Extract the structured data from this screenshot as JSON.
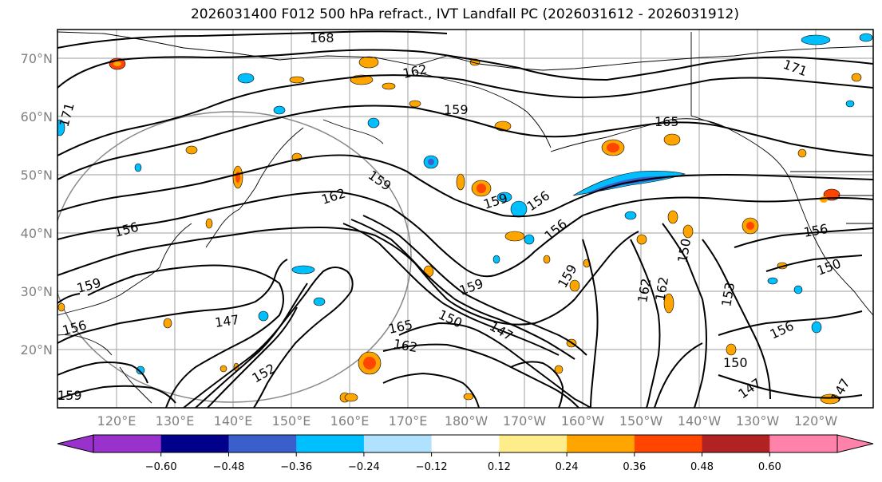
{
  "title": "2026031400 F012 500 hPa refract., IVT Landfall PC (2026031612 - 2026031912)",
  "lat_labels": [
    "70°N",
    "60°N",
    "50°N",
    "40°N",
    "30°N",
    "20°N"
  ],
  "lon_labels": [
    "120°E",
    "130°E",
    "140°E",
    "150°E",
    "160°E",
    "170°E",
    "180°W",
    "170°W",
    "160°W",
    "150°W",
    "140°W",
    "130°W",
    "120°W"
  ],
  "contour_labels": [
    "168",
    "162",
    "159",
    "171",
    "165",
    "171",
    "162",
    "159",
    "159",
    "156",
    "156",
    "162",
    "156",
    "159",
    "156",
    "147",
    "150",
    "165",
    "162",
    "147",
    "159",
    "150",
    "162",
    "156",
    "153",
    "156",
    "159",
    "150",
    "147",
    "147",
    "150",
    "152",
    "159"
  ],
  "colorbar": {
    "colors": [
      "#9932cc",
      "#00008b",
      "#3a5fcd",
      "#00bfff",
      "#b0e2ff",
      "#ffffff",
      "#ffec8b",
      "#ffa500",
      "#ff4500",
      "#b22222",
      "#ff82ab"
    ],
    "ticks": [
      "−0.60",
      "−0.48",
      "−0.36",
      "−0.24",
      "−0.12",
      "0.12",
      "0.24",
      "0.36",
      "0.48",
      "0.60"
    ]
  },
  "colors": {
    "contour": "#000000",
    "grid": "#b0b0b0",
    "circle": "#888888"
  }
}
